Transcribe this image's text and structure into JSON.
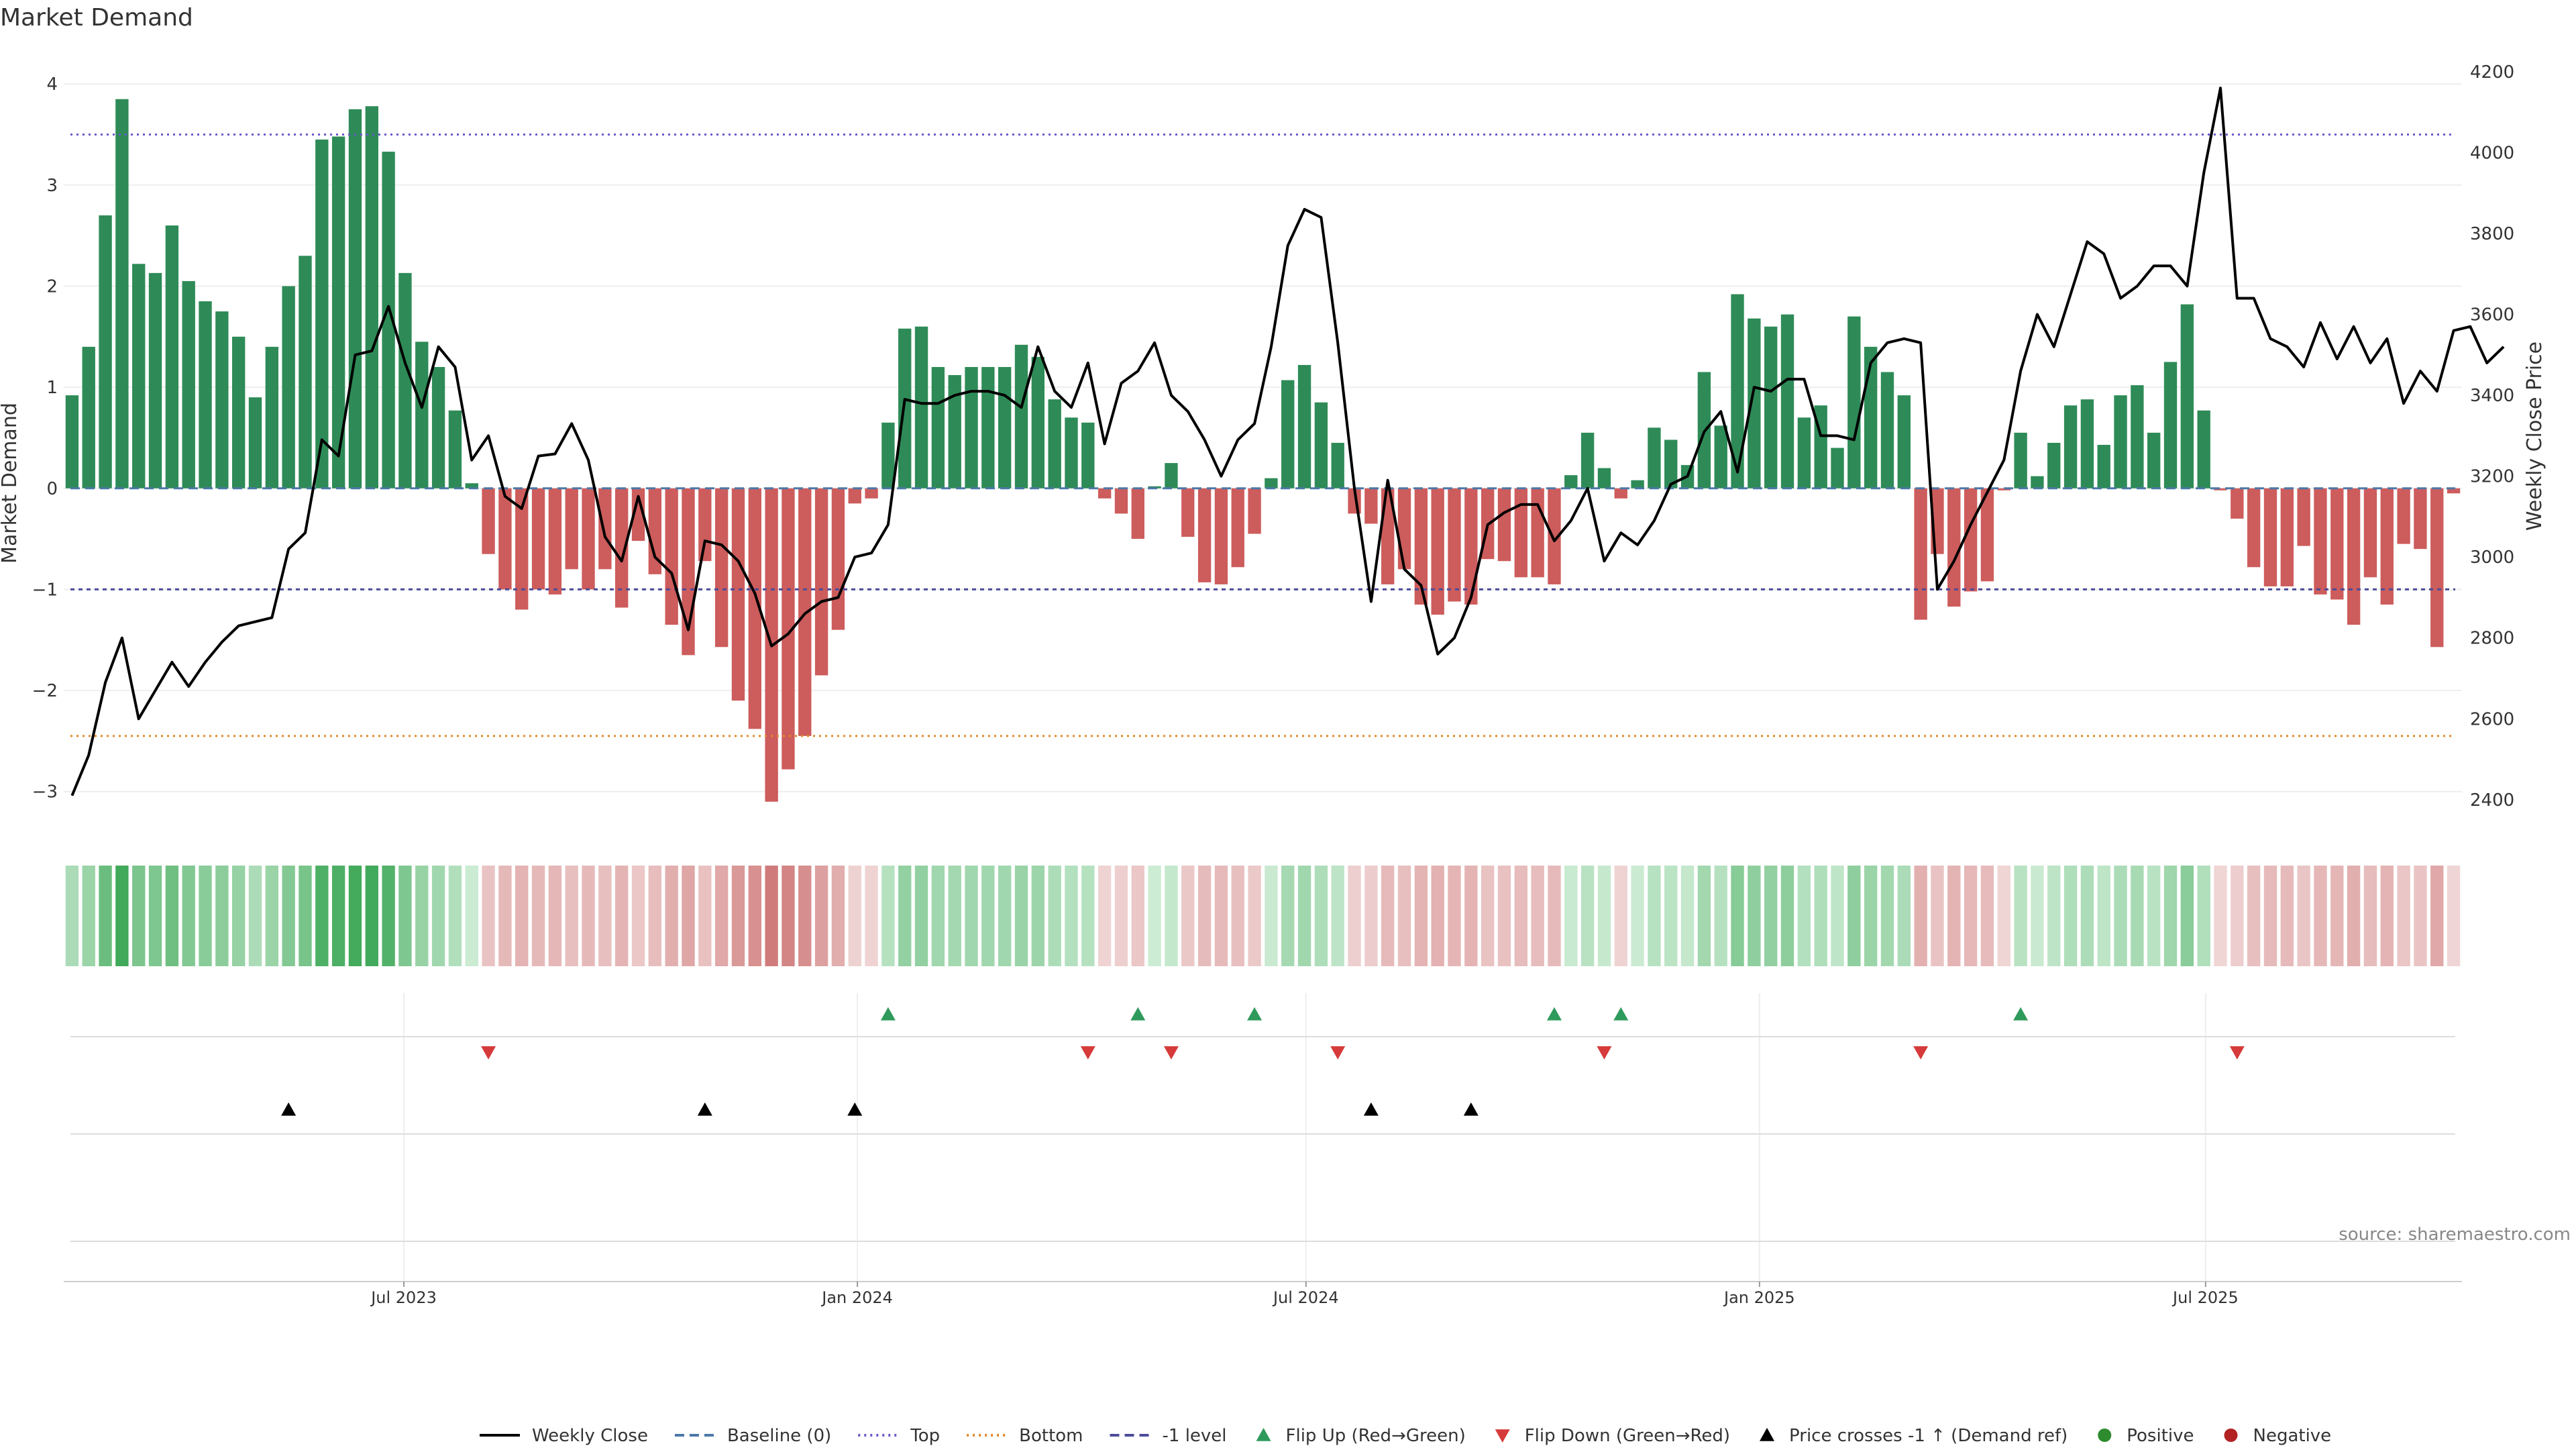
{
  "chart_data": {
    "type": "bar",
    "title": "Market Demand",
    "ylabel": "Market Demand",
    "y2label": "Weekly Close Price",
    "ylim": [
      -3.4,
      4.2
    ],
    "y2lim": [
      2320,
      4220
    ],
    "yticks": [
      -3,
      -2,
      -1,
      0,
      1,
      2,
      3,
      4
    ],
    "y2ticks": [
      2400,
      2600,
      2800,
      3000,
      3200,
      3400,
      3600,
      3800,
      4000,
      4200
    ],
    "x_date_range": [
      "2023-02-13",
      "2025-10-13"
    ],
    "x_ticks": [
      {
        "date": "2023-07-01",
        "label": "Jul 2023"
      },
      {
        "date": "2024-01-01",
        "label": "Jan 2024"
      },
      {
        "date": "2024-07-01",
        "label": "Jul 2024"
      },
      {
        "date": "2025-01-01",
        "label": "Jan 2025"
      },
      {
        "date": "2025-07-01",
        "label": "Jul 2025"
      }
    ],
    "reference_lines": {
      "top": 3.5,
      "bottom": -2.45,
      "minus_one": -1,
      "baseline": 0
    },
    "demand_weekly": [
      0.92,
      1.4,
      2.7,
      3.85,
      2.22,
      2.13,
      2.6,
      2.05,
      1.85,
      1.75,
      1.5,
      0.9,
      1.4,
      2.0,
      2.3,
      3.45,
      3.48,
      3.75,
      3.78,
      3.33,
      2.13,
      1.45,
      1.2,
      0.77,
      0.05,
      -0.65,
      -1.0,
      -1.2,
      -1.0,
      -1.05,
      -0.8,
      -1.0,
      -0.8,
      -1.18,
      -0.52,
      -0.85,
      -1.35,
      -1.65,
      -0.72,
      -1.57,
      -2.1,
      -2.38,
      -3.1,
      -2.78,
      -2.45,
      -1.85,
      -1.4,
      -0.15,
      -0.1,
      0.65,
      1.58,
      1.6,
      1.2,
      1.12,
      1.2,
      1.2,
      1.2,
      1.42,
      1.3,
      0.88,
      0.7,
      0.65,
      -0.1,
      -0.25,
      -0.5,
      0.02,
      0.25,
      -0.48,
      -0.93,
      -0.95,
      -0.78,
      -0.45,
      0.1,
      1.07,
      1.22,
      0.85,
      0.45,
      -0.25,
      -0.35,
      -0.95,
      -0.8,
      -1.15,
      -1.25,
      -1.12,
      -1.15,
      -0.7,
      -0.72,
      -0.88,
      -0.88,
      -0.95,
      0.13,
      0.55,
      0.2,
      -0.1,
      0.08,
      0.6,
      0.48,
      0.23,
      1.15,
      0.62,
      1.92,
      1.68,
      1.6,
      1.72,
      0.7,
      0.82,
      0.4,
      1.7,
      1.4,
      1.15,
      0.92,
      -1.3,
      -0.65,
      -1.17,
      -1.02,
      -0.92,
      -0.02,
      0.55,
      0.12,
      0.45,
      0.82,
      0.88,
      0.43,
      0.92,
      1.02,
      0.55,
      1.25,
      1.82,
      0.77,
      -0.02,
      -0.3,
      -0.78,
      -0.97,
      -0.97,
      -0.57,
      -1.05,
      -1.1,
      -1.35,
      -0.88,
      -1.15,
      -0.55,
      -0.6,
      -1.57,
      -0.05
    ],
    "weekly_close": [
      2410,
      2510,
      2690,
      2800,
      2600,
      2670,
      2740,
      2680,
      2740,
      2790,
      2830,
      2840,
      2850,
      3020,
      3060,
      3290,
      3250,
      3500,
      3510,
      3620,
      3480,
      3370,
      3520,
      3470,
      3240,
      3300,
      3150,
      3120,
      3250,
      3255,
      3330,
      3240,
      3050,
      2990,
      3150,
      3000,
      2960,
      2820,
      3040,
      3030,
      2990,
      2910,
      2780,
      2810,
      2860,
      2890,
      2900,
      3000,
      3010,
      3080,
      3390,
      3380,
      3380,
      3400,
      3410,
      3410,
      3400,
      3370,
      3520,
      3410,
      3370,
      3480,
      3280,
      3430,
      3460,
      3530,
      3400,
      3360,
      3290,
      3200,
      3290,
      3330,
      3520,
      3770,
      3860,
      3840,
      3530,
      3170,
      2890,
      3190,
      2970,
      2930,
      2760,
      2800,
      2900,
      3080,
      3110,
      3130,
      3130,
      3040,
      3090,
      3170,
      2990,
      3060,
      3030,
      3090,
      3180,
      3200,
      3310,
      3360,
      3210,
      3420,
      3410,
      3440,
      3440,
      3300,
      3300,
      3290,
      3480,
      3530,
      3540,
      3530,
      2920,
      2990,
      3080,
      3160,
      3240,
      3460,
      3600,
      3520,
      3650,
      3780,
      3750,
      3640,
      3670,
      3720,
      3720,
      3670,
      3950,
      4160,
      3640,
      3640,
      3540,
      3520,
      3470,
      3580,
      3490,
      3570,
      3480,
      3540,
      3380,
      3460,
      3410,
      3560,
      3570,
      3480,
      3520
    ],
    "flip_up_weeks": [
      49,
      64,
      71,
      89,
      93,
      117
    ],
    "flip_down_weeks": [
      25,
      61,
      66,
      76,
      92,
      111,
      130
    ],
    "price_cross_weeks": [
      13,
      38,
      47,
      78,
      84
    ],
    "source_text": "source: sharemaestro.com",
    "legend": [
      {
        "label": "Weekly Close",
        "kind": "line-solid",
        "color": "#000000"
      },
      {
        "label": "Baseline (0)",
        "kind": "line-dash",
        "color": "#4c78a8"
      },
      {
        "label": "Top",
        "kind": "line-dot",
        "color": "#6a5acd"
      },
      {
        "label": "Bottom",
        "kind": "line-dot",
        "color": "#e08a2e"
      },
      {
        "label": "-1 level",
        "kind": "line-dash",
        "color": "#4c4c9a"
      },
      {
        "label": "Flip Up (Red→Green)",
        "kind": "triangle-up",
        "color": "#2e9a5c"
      },
      {
        "label": "Flip Down (Green→Red)",
        "kind": "triangle-down",
        "color": "#d63a3a"
      },
      {
        "label": "Price crosses -1 ↑ (Demand ref)",
        "kind": "triangle-up",
        "color": "#000000"
      },
      {
        "label": "Positive",
        "kind": "dot",
        "color": "#2e8b2e"
      },
      {
        "label": "Negative",
        "kind": "dot",
        "color": "#b22222"
      }
    ],
    "colors": {
      "positive": "#2e8b57",
      "negative": "#cd5c5c",
      "flip_up": "#2e9a5c",
      "flip_down": "#d63a3a",
      "close": "#000000"
    }
  }
}
